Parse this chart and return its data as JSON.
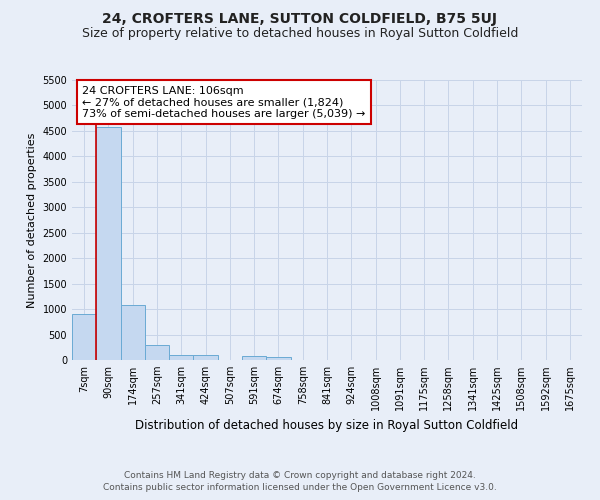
{
  "title": "24, CROFTERS LANE, SUTTON COLDFIELD, B75 5UJ",
  "subtitle": "Size of property relative to detached houses in Royal Sutton Coldfield",
  "xlabel": "Distribution of detached houses by size in Royal Sutton Coldfield",
  "ylabel": "Number of detached properties",
  "categories": [
    "7sqm",
    "90sqm",
    "174sqm",
    "257sqm",
    "341sqm",
    "424sqm",
    "507sqm",
    "591sqm",
    "674sqm",
    "758sqm",
    "841sqm",
    "924sqm",
    "1008sqm",
    "1091sqm",
    "1175sqm",
    "1258sqm",
    "1341sqm",
    "1425sqm",
    "1508sqm",
    "1592sqm",
    "1675sqm"
  ],
  "values": [
    900,
    4570,
    1080,
    290,
    100,
    100,
    0,
    75,
    65,
    0,
    0,
    0,
    0,
    0,
    0,
    0,
    0,
    0,
    0,
    0,
    0
  ],
  "bar_color": "#c5d8f0",
  "bar_edge_color": "#6aaad4",
  "grid_color": "#c8d4e8",
  "background_color": "#e8eef8",
  "annotation_text": "24 CROFTERS LANE: 106sqm\n← 27% of detached houses are smaller (1,824)\n73% of semi-detached houses are larger (5,039) →",
  "annotation_box_color": "#ffffff",
  "annotation_border_color": "#cc0000",
  "redline_x": 0.5,
  "redline_color": "#cc0000",
  "ylim": [
    0,
    5500
  ],
  "yticks": [
    0,
    500,
    1000,
    1500,
    2000,
    2500,
    3000,
    3500,
    4000,
    4500,
    5000,
    5500
  ],
  "footnote": "Contains HM Land Registry data © Crown copyright and database right 2024.\nContains public sector information licensed under the Open Government Licence v3.0.",
  "title_fontsize": 10,
  "subtitle_fontsize": 9,
  "xlabel_fontsize": 8.5,
  "ylabel_fontsize": 8,
  "tick_fontsize": 7,
  "annotation_fontsize": 8,
  "footnote_fontsize": 6.5
}
